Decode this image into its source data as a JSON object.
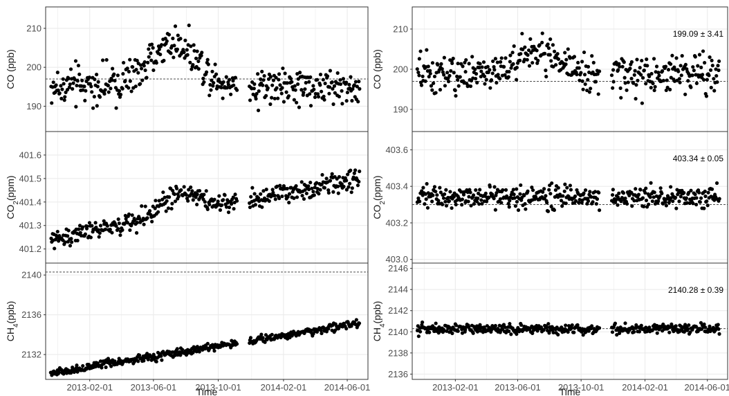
{
  "colors": {
    "point": "#000000",
    "grid": "#ebebeb",
    "frame": "#333333",
    "ref_line": "#333333"
  },
  "chart_data": [
    {
      "id": "left-co",
      "type": "scatter",
      "column": "left",
      "row": 0,
      "ylabel": "CO (ppb)",
      "ylim": [
        183.5,
        215.5
      ],
      "yticks": [
        190,
        200,
        210
      ],
      "ref_y": 197.0,
      "annotation": "",
      "trend": {
        "kind": "seasonal",
        "base": 195,
        "peak": 206,
        "noise": 3.4
      },
      "xlabel": "",
      "xticks": []
    },
    {
      "id": "left-co2",
      "type": "scatter",
      "column": "left",
      "row": 1,
      "ylabel": "CO2(ppm)",
      "ylim": [
        401.14,
        401.7
      ],
      "yticks": [
        401.2,
        401.3,
        401.4,
        401.5,
        401.6
      ],
      "ref_y": null,
      "annotation": "",
      "trend": {
        "kind": "linear_bump",
        "start": 401.24,
        "end": 401.5,
        "bump": 0.09,
        "noise": 0.03
      },
      "xlabel": "",
      "xticks": []
    },
    {
      "id": "left-ch4",
      "type": "scatter",
      "column": "left",
      "row": 2,
      "ylabel": "CH4(ppb)",
      "ylim": [
        2129.5,
        2141.2
      ],
      "yticks": [
        2132,
        2136,
        2140
      ],
      "ref_y": 2140.3,
      "annotation": "",
      "trend": {
        "kind": "linear",
        "start": 2130.1,
        "end": 2135.2,
        "noise": 0.28
      },
      "xlabel": "Time",
      "xticks": [
        "2013-02-01",
        "2013-06-01",
        "2013-10-01",
        "2014-02-01",
        "2014-06-01"
      ]
    },
    {
      "id": "right-co",
      "type": "scatter",
      "column": "right",
      "row": 0,
      "ylabel": "CO (ppb)",
      "ylim": [
        184.5,
        215.5
      ],
      "yticks": [
        190,
        200,
        210
      ],
      "ref_y": 197.0,
      "annotation": "199.09 ± 3.41",
      "trend": {
        "kind": "seasonal",
        "base": 198.5,
        "peak": 204,
        "noise": 3.4
      },
      "xlabel": "",
      "xticks": []
    },
    {
      "id": "right-co2",
      "type": "scatter",
      "column": "right",
      "row": 1,
      "ylabel": "CO2(ppm)",
      "ylim": [
        402.98,
        403.7
      ],
      "yticks": [
        403.0,
        403.2,
        403.4,
        403.6
      ],
      "ref_y": 403.3,
      "annotation": "403.34 ± 0.05",
      "trend": {
        "kind": "flat",
        "level": 403.34,
        "noise": 0.045
      },
      "xlabel": "",
      "xticks": []
    },
    {
      "id": "right-ch4",
      "type": "scatter",
      "column": "right",
      "row": 2,
      "ylabel": "CH4(ppb)",
      "ylim": [
        2135.5,
        2146.5
      ],
      "yticks": [
        2136,
        2138,
        2140,
        2142,
        2144,
        2146
      ],
      "ref_y": 2140.3,
      "annotation": "2140.28 ± 0.39",
      "trend": {
        "kind": "flat",
        "level": 2140.28,
        "noise": 0.35
      },
      "xlabel": "Time",
      "xticks": [
        "2013-02-01",
        "2013-06-01",
        "2013-10-01",
        "2014-02-01",
        "2014-06-01"
      ]
    }
  ],
  "time_axis": {
    "range": [
      "2012-11-10",
      "2014-07-10"
    ],
    "data_start": "2012-11-20",
    "data_end": "2014-06-25",
    "gap": [
      "2013-11-05",
      "2013-11-28"
    ],
    "ticks": [
      "2013-02-01",
      "2013-06-01",
      "2013-10-01",
      "2014-02-01",
      "2014-06-01"
    ]
  }
}
